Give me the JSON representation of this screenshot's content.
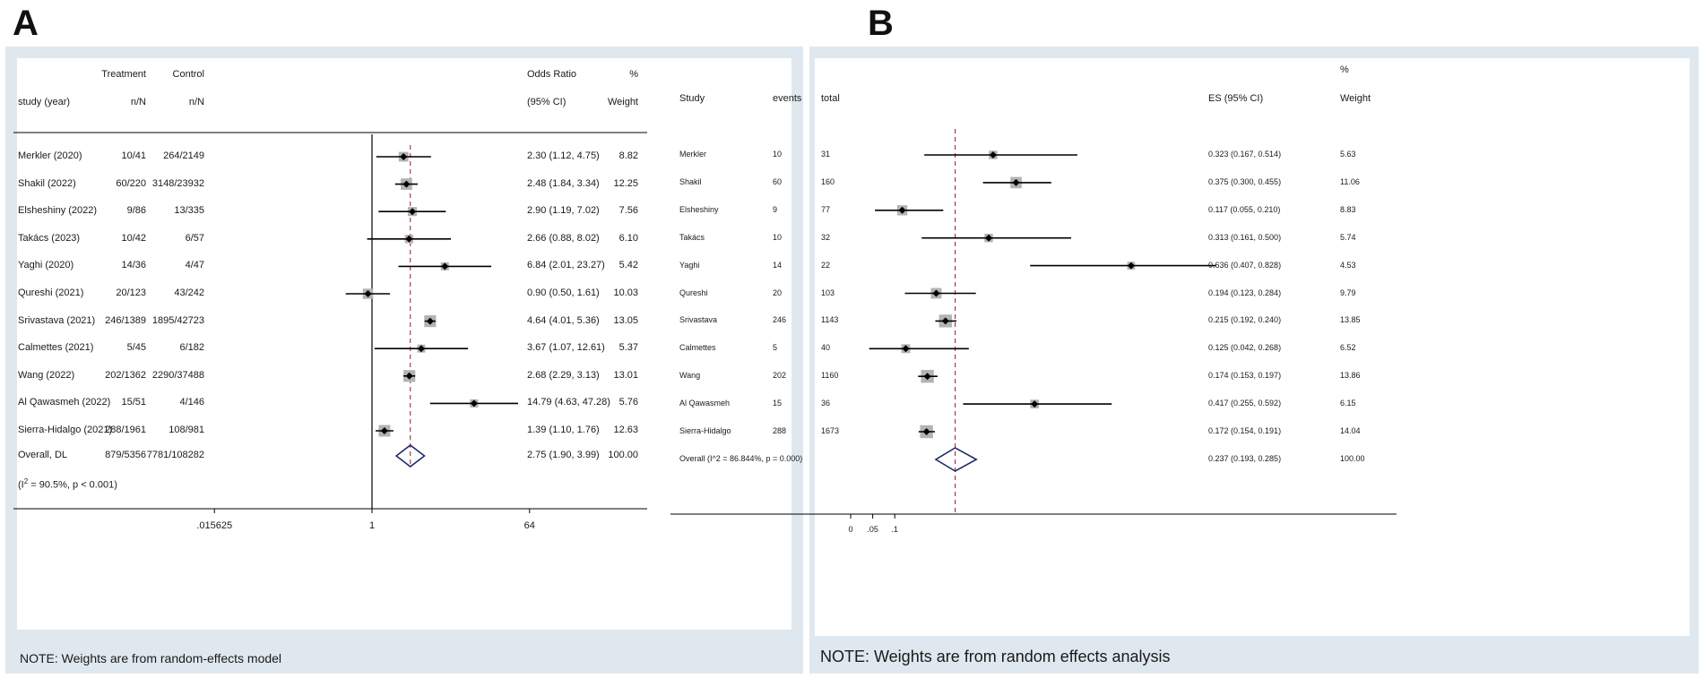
{
  "chart_data": [
    {
      "type": "forest",
      "panel": "A",
      "headers": {
        "treatment_top": "Treatment",
        "control_top": "Control",
        "or_top": "Odds Ratio",
        "pct_top": "%",
        "study": "study (year)",
        "treatment": "n/N",
        "control": "n/N",
        "ci": "(95% CI)",
        "weight": "Weight"
      },
      "xscale": "log",
      "xticks": [
        {
          "value": 0.015625,
          "label": ".015625"
        },
        {
          "value": 1,
          "label": "1"
        },
        {
          "value": 64,
          "label": "64"
        }
      ],
      "null_line": 1,
      "overall_line": 2.75,
      "studies": [
        {
          "name": "Merkler (2020)",
          "treatment": "10/41",
          "control": "264/2149",
          "es": 2.3,
          "lo": 1.12,
          "hi": 4.75,
          "ci_text": "2.30 (1.12, 4.75)",
          "weight": "8.82"
        },
        {
          "name": "Shakil (2022)",
          "treatment": "60/220",
          "control": "3148/23932",
          "es": 2.48,
          "lo": 1.84,
          "hi": 3.34,
          "ci_text": "2.48 (1.84, 3.34)",
          "weight": "12.25"
        },
        {
          "name": "Elsheshiny  (2022)",
          "treatment": "9/86",
          "control": "13/335",
          "es": 2.9,
          "lo": 1.19,
          "hi": 7.02,
          "ci_text": "2.90 (1.19, 7.02)",
          "weight": "7.56"
        },
        {
          "name": "Takács (2023)",
          "treatment": "10/42",
          "control": "6/57",
          "es": 2.66,
          "lo": 0.88,
          "hi": 8.02,
          "ci_text": "2.66 (0.88, 8.02)",
          "weight": "6.10"
        },
        {
          "name": "Yaghi (2020)",
          "treatment": "14/36",
          "control": "4/47",
          "es": 6.84,
          "lo": 2.01,
          "hi": 23.27,
          "ci_text": "6.84 (2.01, 23.27)",
          "weight": "5.42"
        },
        {
          "name": "Qureshi (2021)",
          "treatment": "20/123",
          "control": "43/242",
          "es": 0.9,
          "lo": 0.5,
          "hi": 1.61,
          "ci_text": "0.90 (0.50, 1.61)",
          "weight": "10.03"
        },
        {
          "name": "Srivastava  (2021)",
          "treatment": "246/1389",
          "control": "1895/42723",
          "es": 4.64,
          "lo": 4.01,
          "hi": 5.36,
          "ci_text": "4.64 (4.01, 5.36)",
          "weight": "13.05"
        },
        {
          "name": "Calmettes  (2021)",
          "treatment": "5/45",
          "control": "6/182",
          "es": 3.67,
          "lo": 1.07,
          "hi": 12.61,
          "ci_text": "3.67 (1.07, 12.61)",
          "weight": "5.37"
        },
        {
          "name": "Wang (2022)",
          "treatment": "202/1362",
          "control": "2290/37488",
          "es": 2.68,
          "lo": 2.29,
          "hi": 3.13,
          "ci_text": "2.68 (2.29, 3.13)",
          "weight": "13.01"
        },
        {
          "name": "Al Qawasmeh  (2022)",
          "treatment": "15/51",
          "control": "4/146",
          "es": 14.79,
          "lo": 4.63,
          "hi": 47.28,
          "ci_text": "14.79 (4.63, 47.28)",
          "weight": "5.76"
        },
        {
          "name": "Sierra-Hidalgo  (2021)",
          "treatment": "288/1961",
          "control": "108/981",
          "es": 1.39,
          "lo": 1.1,
          "hi": 1.76,
          "ci_text": "1.39 (1.10, 1.76)",
          "weight": "12.63"
        }
      ],
      "overall": {
        "name": "Overall, DL",
        "treatment": "879/5356",
        "control": "7781/108282",
        "es": 2.75,
        "lo": 1.9,
        "hi": 3.99,
        "ci_text": "2.75 (1.90, 3.99)",
        "weight": "100.00"
      },
      "heterogeneity_prefix": "(I",
      "heterogeneity_sup": "2",
      "heterogeneity_rest": " = 90.5%, p < 0.001)",
      "note": "NOTE: Weights are from random-effects model"
    },
    {
      "type": "forest",
      "panel": "B",
      "headers": {
        "study": "Study",
        "events": "events",
        "total": "total",
        "ci": "ES (95% CI)",
        "pct_top": "%",
        "weight": "Weight"
      },
      "xscale": "linear",
      "xticks": [
        {
          "value": 0,
          "label": "0"
        },
        {
          "value": 0.05,
          "label": ".05"
        },
        {
          "value": 0.1,
          "label": ".1"
        }
      ],
      "overall_line": 0.237,
      "studies": [
        {
          "name": "Merkler",
          "events": "10",
          "total": "31",
          "es": 0.323,
          "lo": 0.167,
          "hi": 0.514,
          "ci_text": "0.323 (0.167, 0.514)",
          "weight": "5.63"
        },
        {
          "name": "Shakil",
          "events": "60",
          "total": "160",
          "es": 0.375,
          "lo": 0.3,
          "hi": 0.455,
          "ci_text": "0.375 (0.300, 0.455)",
          "weight": "11.06"
        },
        {
          "name": "Elsheshiny",
          "events": "9",
          "total": "77",
          "es": 0.117,
          "lo": 0.055,
          "hi": 0.21,
          "ci_text": "0.117 (0.055, 0.210)",
          "weight": "8.83"
        },
        {
          "name": "Takács",
          "events": "10",
          "total": "32",
          "es": 0.313,
          "lo": 0.161,
          "hi": 0.5,
          "ci_text": "0.313 (0.161, 0.500)",
          "weight": "5.74"
        },
        {
          "name": "Yaghi",
          "events": "14",
          "total": "22",
          "es": 0.636,
          "lo": 0.407,
          "hi": 0.828,
          "ci_text": "0.636 (0.407, 0.828)",
          "weight": "4.53"
        },
        {
          "name": "Qureshi",
          "events": "20",
          "total": "103",
          "es": 0.194,
          "lo": 0.123,
          "hi": 0.284,
          "ci_text": "0.194 (0.123, 0.284)",
          "weight": "9.79"
        },
        {
          "name": "Srivastava",
          "events": "246",
          "total": "1143",
          "es": 0.215,
          "lo": 0.192,
          "hi": 0.24,
          "ci_text": "0.215 (0.192, 0.240)",
          "weight": "13.85"
        },
        {
          "name": "Calmettes",
          "events": "5",
          "total": "40",
          "es": 0.125,
          "lo": 0.042,
          "hi": 0.268,
          "ci_text": "0.125 (0.042, 0.268)",
          "weight": "6.52"
        },
        {
          "name": "Wang",
          "events": "202",
          "total": "1160",
          "es": 0.174,
          "lo": 0.153,
          "hi": 0.197,
          "ci_text": "0.174 (0.153, 0.197)",
          "weight": "13.86"
        },
        {
          "name": "Al Qawasmeh",
          "events": "15",
          "total": "36",
          "es": 0.417,
          "lo": 0.255,
          "hi": 0.592,
          "ci_text": "0.417 (0.255, 0.592)",
          "weight": "6.15"
        },
        {
          "name": "Sierra-Hidalgo",
          "events": "288",
          "total": "1673",
          "es": 0.172,
          "lo": 0.154,
          "hi": 0.191,
          "ci_text": "0.172 (0.154, 0.191)",
          "weight": "14.04"
        }
      ],
      "overall": {
        "name": "Overall  (I^2 = 86.844%, p = 0.000)",
        "es": 0.237,
        "lo": 0.193,
        "hi": 0.285,
        "ci_text": "0.237 (0.193, 0.285)",
        "weight": "100.00"
      },
      "note": "NOTE: Weights are from random effects analysis"
    }
  ],
  "panels": {
    "a_letter": "A",
    "b_letter": "B"
  },
  "colors": {
    "frame": "#dfe8ee",
    "box": "#b3b3b3",
    "line": "#000000",
    "diamond": "#1f2a6b",
    "dash": "#8b1c2c"
  }
}
